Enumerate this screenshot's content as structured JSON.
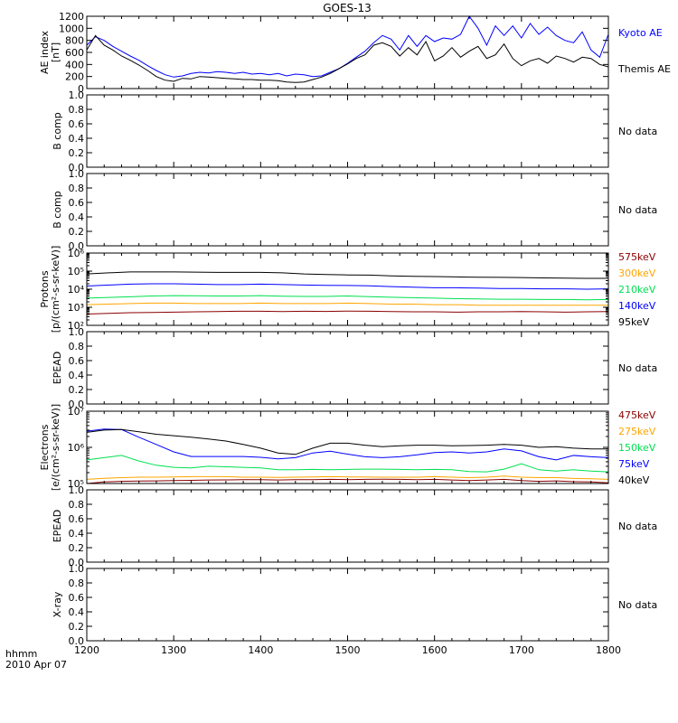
{
  "title": "GOES-13",
  "bottom_labels": {
    "time_format": "hhmm",
    "date": "2010 Apr 07"
  },
  "no_data_label": "No data",
  "x_axis": {
    "range": [
      1200,
      1800
    ],
    "tick_labels": [
      "1200",
      "1300",
      "1400",
      "1500",
      "1600",
      "1700",
      "1800"
    ]
  },
  "chart_data": [
    {
      "id": "ae",
      "type": "line",
      "ylabel": [
        "AE index",
        "[nT]"
      ],
      "ylim": [
        0,
        1200
      ],
      "yticks": [
        0,
        200,
        400,
        600,
        800,
        1000,
        1200
      ],
      "ytick_labels": [
        "0",
        "200",
        "400",
        "600",
        "800",
        "1000",
        "1200"
      ],
      "x": [
        1200,
        1210,
        1220,
        1230,
        1240,
        1250,
        1260,
        1270,
        1280,
        1290,
        1300,
        1310,
        1320,
        1330,
        1340,
        1350,
        1360,
        1370,
        1380,
        1390,
        1400,
        1410,
        1420,
        1430,
        1440,
        1450,
        1460,
        1470,
        1480,
        1490,
        1500,
        1510,
        1520,
        1530,
        1540,
        1550,
        1560,
        1570,
        1580,
        1590,
        1600,
        1610,
        1620,
        1630,
        1640,
        1650,
        1660,
        1670,
        1680,
        1690,
        1700,
        1710,
        1720,
        1730,
        1740,
        1750,
        1760,
        1770,
        1780,
        1790,
        1800
      ],
      "series": [
        {
          "name": "Kyoto AE",
          "color": "#0000ff",
          "values": [
            720,
            860,
            800,
            700,
            620,
            540,
            470,
            380,
            300,
            230,
            190,
            210,
            250,
            270,
            260,
            280,
            270,
            250,
            270,
            240,
            250,
            230,
            250,
            210,
            240,
            230,
            200,
            210,
            270,
            330,
            420,
            520,
            620,
            760,
            880,
            820,
            640,
            880,
            700,
            880,
            780,
            840,
            820,
            900,
            1200,
            1000,
            720,
            1040,
            880,
            1040,
            840,
            1080,
            900,
            1020,
            880,
            800,
            760,
            940,
            640,
            520,
            900
          ]
        },
        {
          "name": "Themis AE",
          "color": "#000000",
          "values": [
            640,
            880,
            720,
            640,
            540,
            470,
            390,
            300,
            200,
            140,
            120,
            170,
            160,
            200,
            190,
            180,
            170,
            160,
            150,
            150,
            140,
            140,
            130,
            110,
            100,
            110,
            150,
            190,
            250,
            330,
            410,
            500,
            560,
            720,
            760,
            700,
            540,
            680,
            560,
            780,
            460,
            540,
            680,
            520,
            620,
            700,
            500,
            560,
            740,
            500,
            380,
            460,
            500,
            420,
            540,
            500,
            440,
            520,
            500,
            400,
            360
          ]
        }
      ]
    },
    {
      "id": "bcomp1",
      "type": "line",
      "ylabel": [
        "B comp"
      ],
      "ylim": [
        0,
        1
      ],
      "yticks": [
        0,
        0.2,
        0.4,
        0.6,
        0.8,
        1.0
      ],
      "ytick_labels": [
        "0.0",
        "0.2",
        "0.4",
        "0.6",
        "0.8",
        "1.0"
      ],
      "series": []
    },
    {
      "id": "bcomp2",
      "type": "line",
      "ylabel": [
        "B comp"
      ],
      "ylim": [
        0,
        1
      ],
      "yticks": [
        0,
        0.2,
        0.4,
        0.6,
        0.8,
        1.0
      ],
      "ytick_labels": [
        "0.0",
        "0.2",
        "0.4",
        "0.6",
        "0.8",
        "1.0"
      ],
      "series": []
    },
    {
      "id": "protons",
      "type": "line",
      "log_y": true,
      "ylabel": [
        "Protons",
        "[p/(cm²-s-sr-keV)]"
      ],
      "ylim": [
        100,
        1000000
      ],
      "yticks": [
        100,
        1000,
        10000,
        100000,
        1000000
      ],
      "ytick_labels": [
        "10²",
        "10³",
        "10⁴",
        "10⁵",
        "10⁶"
      ],
      "x": [
        1200,
        1225,
        1250,
        1275,
        1300,
        1325,
        1350,
        1375,
        1400,
        1425,
        1450,
        1475,
        1500,
        1525,
        1550,
        1575,
        1600,
        1625,
        1650,
        1675,
        1700,
        1725,
        1750,
        1775,
        1800
      ],
      "series": [
        {
          "name": "575keV",
          "color": "#8b0000",
          "values": [
            420,
            460,
            500,
            520,
            540,
            560,
            580,
            600,
            600,
            580,
            600,
            590,
            620,
            600,
            580,
            560,
            560,
            540,
            560,
            560,
            580,
            560,
            540,
            560,
            580
          ]
        },
        {
          "name": "300keV",
          "color": "#ffa500",
          "values": [
            1400,
            1500,
            1600,
            1700,
            1700,
            1600,
            1600,
            1600,
            1700,
            1600,
            1600,
            1600,
            1700,
            1600,
            1500,
            1500,
            1400,
            1400,
            1300,
            1300,
            1300,
            1300,
            1300,
            1300,
            1300
          ]
        },
        {
          "name": "210keV",
          "color": "#00e050",
          "values": [
            3200,
            3500,
            3800,
            4200,
            4400,
            4300,
            4200,
            4200,
            4400,
            4100,
            4000,
            4000,
            4200,
            3900,
            3600,
            3400,
            3200,
            3000,
            2900,
            2800,
            2800,
            2700,
            2700,
            2600,
            2700
          ]
        },
        {
          "name": "140keV",
          "color": "#0000ff",
          "values": [
            15000,
            17000,
            19000,
            20000,
            20000,
            19000,
            18000,
            18000,
            19000,
            18000,
            17000,
            16500,
            16000,
            15500,
            14000,
            13000,
            12000,
            12000,
            11500,
            11000,
            11000,
            10500,
            10500,
            10000,
            10500
          ]
        },
        {
          "name": "95keV",
          "color": "#000000",
          "values": [
            70000,
            80000,
            90000,
            90000,
            90000,
            88000,
            85000,
            85000,
            85000,
            80000,
            70000,
            65000,
            62000,
            60000,
            55000,
            52000,
            50000,
            48000,
            46000,
            45000,
            44000,
            42000,
            41000,
            40000,
            40000
          ]
        }
      ]
    },
    {
      "id": "epead1",
      "type": "line",
      "ylabel": [
        "EPEAD"
      ],
      "ylim": [
        0,
        1
      ],
      "yticks": [
        0,
        0.2,
        0.4,
        0.6,
        0.8,
        1.0
      ],
      "ytick_labels": [
        "0.0",
        "0.2",
        "0.4",
        "0.6",
        "0.8",
        "1.0"
      ],
      "series": []
    },
    {
      "id": "electrons",
      "type": "line",
      "log_y": true,
      "ylabel": [
        "Electrons",
        "[e/(cm²-s-sr-keV)]"
      ],
      "ylim": [
        100000,
        10000000
      ],
      "yticks": [
        100000,
        1000000,
        10000000
      ],
      "ytick_labels": [
        "10⁵",
        "10⁶",
        "10⁷"
      ],
      "x": [
        1200,
        1220,
        1240,
        1260,
        1280,
        1300,
        1320,
        1340,
        1360,
        1380,
        1400,
        1420,
        1440,
        1460,
        1480,
        1500,
        1520,
        1540,
        1560,
        1580,
        1600,
        1620,
        1640,
        1660,
        1680,
        1700,
        1720,
        1740,
        1760,
        1780,
        1800
      ],
      "series": [
        {
          "name": "475keV",
          "color": "#8b0000",
          "values": [
            100000,
            110000,
            115000,
            117000,
            118000,
            120000,
            122000,
            125000,
            126000,
            127000,
            128000,
            125000,
            127000,
            128000,
            130000,
            128000,
            130000,
            132000,
            130000,
            128000,
            130000,
            125000,
            120000,
            125000,
            130000,
            120000,
            115000,
            118000,
            112000,
            110000,
            105000
          ]
        },
        {
          "name": "275keV",
          "color": "#ffa500",
          "values": [
            130000,
            140000,
            145000,
            150000,
            150000,
            152000,
            155000,
            155000,
            155000,
            150000,
            150000,
            148000,
            150000,
            152000,
            155000,
            152000,
            152000,
            150000,
            150000,
            150000,
            155000,
            150000,
            145000,
            150000,
            160000,
            150000,
            145000,
            145000,
            138000,
            135000,
            130000
          ]
        },
        {
          "name": "150keV",
          "color": "#00e050",
          "values": [
            450000,
            520000,
            600000,
            420000,
            320000,
            280000,
            270000,
            300000,
            290000,
            280000,
            270000,
            240000,
            240000,
            245000,
            240000,
            245000,
            250000,
            250000,
            245000,
            240000,
            245000,
            240000,
            215000,
            210000,
            250000,
            350000,
            240000,
            220000,
            240000,
            220000,
            210000
          ]
        },
        {
          "name": "75keV",
          "color": "#0000ff",
          "values": [
            2800000,
            3200000,
            3100000,
            1900000,
            1200000,
            750000,
            560000,
            560000,
            560000,
            560000,
            530000,
            480000,
            520000,
            700000,
            780000,
            650000,
            550000,
            520000,
            550000,
            620000,
            720000,
            750000,
            700000,
            750000,
            900000,
            800000,
            550000,
            450000,
            600000,
            550000,
            520000
          ]
        },
        {
          "name": "40keV",
          "color": "#000000",
          "values": [
            2600000,
            3000000,
            3100000,
            2700000,
            2300000,
            2100000,
            1900000,
            1700000,
            1500000,
            1200000,
            950000,
            700000,
            640000,
            950000,
            1300000,
            1300000,
            1150000,
            1050000,
            1100000,
            1150000,
            1150000,
            1100000,
            1120000,
            1150000,
            1200000,
            1150000,
            1000000,
            1050000,
            950000,
            900000,
            900000
          ]
        }
      ]
    },
    {
      "id": "epead2",
      "type": "line",
      "ylabel": [
        "EPEAD"
      ],
      "ylim": [
        0,
        1
      ],
      "yticks": [
        0,
        0.2,
        0.4,
        0.6,
        0.8,
        1.0
      ],
      "ytick_labels": [
        "0.0",
        "0.2",
        "0.4",
        "0.6",
        "0.8",
        "1.0"
      ],
      "series": []
    },
    {
      "id": "xray",
      "type": "line",
      "ylabel": [
        "X-ray"
      ],
      "ylim": [
        0,
        1
      ],
      "yticks": [
        0,
        0.2,
        0.4,
        0.6,
        0.8,
        1.0
      ],
      "ytick_labels": [
        "0.0",
        "0.2",
        "0.4",
        "0.6",
        "0.8",
        "1.0"
      ],
      "series": []
    }
  ]
}
